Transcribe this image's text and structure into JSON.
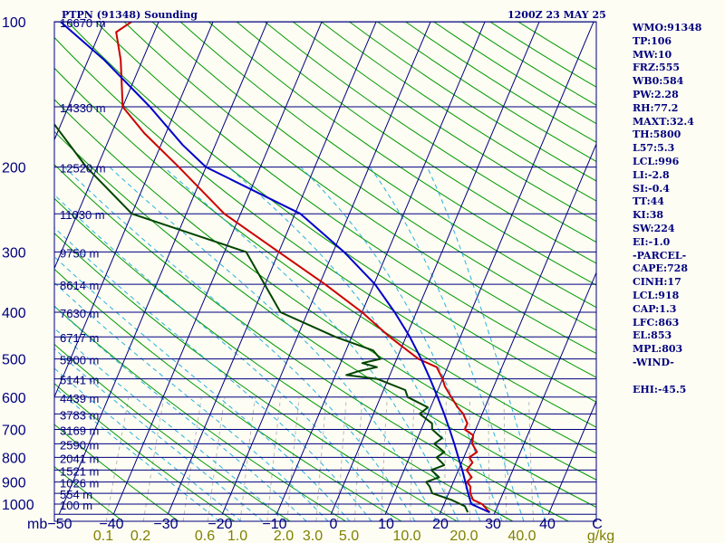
{
  "header": {
    "title": "PTPN (91348) Sounding",
    "time": "1200Z 23 MAY 25"
  },
  "stats": [
    "WMO:91348",
    "TP:106",
    "MW:10",
    "FRZ:555",
    "WB0:584",
    "PW:2.28",
    "RH:77.2",
    "MAXT:32.4",
    "TH:5800",
    "L57:5.3",
    "LCL:996",
    "LI:-2.8",
    "SI:-0.4",
    "TT:44",
    "KI:38",
    "SW:224",
    "EI:-1.0",
    "-PARCEL-",
    "CAPE:728",
    "CINH:17",
    "LCL:918",
    "CAP:1.3",
    "LFC:863",
    "EL:853",
    "MPL:803",
    "-WIND-",
    "",
    "EHI:-45.5"
  ],
  "colors": {
    "background": "#fdfdf3",
    "isobar": "#000080",
    "isotherm": "#000080",
    "dry_adiabat": "#009900",
    "mixing_ratio": "#bbbbbb",
    "moist_adiabat": "#2ab0e0",
    "temperature": "#cc0000",
    "dewpoint": "#004400",
    "parcel": "#0000cc",
    "axis_text": "#000080",
    "mixing_text": "#808000"
  },
  "chart_data": {
    "type": "line",
    "diagram": "skew-T log-P",
    "y_axis": {
      "label": "mb",
      "pressure_levels": [
        100,
        200,
        300,
        400,
        500,
        600,
        700,
        800,
        900,
        1000
      ],
      "height_labels": [
        {
          "p": 100,
          "label": "16670 m"
        },
        {
          "p": 150,
          "label": "14330 m"
        },
        {
          "p": 200,
          "label": "12520 m"
        },
        {
          "p": 250,
          "label": "11030 m"
        },
        {
          "p": 300,
          "label": "9750 m"
        },
        {
          "p": 350,
          "label": "8614 m"
        },
        {
          "p": 400,
          "label": "7630 m"
        },
        {
          "p": 450,
          "label": "6717 m"
        },
        {
          "p": 500,
          "label": "5900 m"
        },
        {
          "p": 550,
          "label": "5141 m"
        },
        {
          "p": 600,
          "label": "4439 m"
        },
        {
          "p": 650,
          "label": "3783 m"
        },
        {
          "p": 700,
          "label": "3169 m"
        },
        {
          "p": 750,
          "label": "2590 m"
        },
        {
          "p": 800,
          "label": "2041 m"
        },
        {
          "p": 850,
          "label": "1521 m"
        },
        {
          "p": 900,
          "label": "1026 m"
        },
        {
          "p": 950,
          "label": "554 m"
        },
        {
          "p": 1000,
          "label": "100 m"
        }
      ],
      "range_hpa": [
        1050,
        100
      ]
    },
    "x_axis": {
      "temperature_ticks": [
        "−50",
        "−40",
        "−30",
        "−20",
        "−10",
        "0",
        "10",
        "20",
        "30",
        "40",
        "C"
      ],
      "temperature_range_c": [
        -50,
        50
      ],
      "mixing_ratio_ticks": [
        "0.1",
        "0.2",
        "0.6",
        "1.0",
        "2.0",
        "3.0",
        "5.0",
        "10.0",
        "20.0",
        "40.0",
        "g/kg"
      ]
    },
    "series": [
      {
        "key": "temperature",
        "points": [
          [
            1040,
            29
          ],
          [
            1000,
            27
          ],
          [
            980,
            25
          ],
          [
            950,
            24
          ],
          [
            920,
            23.5
          ],
          [
            900,
            22.5
          ],
          [
            880,
            23
          ],
          [
            850,
            21.5
          ],
          [
            820,
            22
          ],
          [
            800,
            21
          ],
          [
            780,
            22
          ],
          [
            750,
            20.5
          ],
          [
            720,
            20
          ],
          [
            700,
            18
          ],
          [
            680,
            18
          ],
          [
            650,
            16.5
          ],
          [
            630,
            15
          ],
          [
            600,
            13
          ],
          [
            570,
            11
          ],
          [
            550,
            10
          ],
          [
            520,
            8
          ],
          [
            500,
            4
          ],
          [
            450,
            -3
          ],
          [
            400,
            -10
          ],
          [
            350,
            -19
          ],
          [
            300,
            -30
          ],
          [
            250,
            -43
          ],
          [
            200,
            -55
          ],
          [
            170,
            -64
          ],
          [
            150,
            -70
          ],
          [
            120,
            -74
          ],
          [
            105,
            -77
          ],
          [
            100,
            -75
          ]
        ]
      },
      {
        "key": "dewpoint",
        "points": [
          [
            1040,
            25
          ],
          [
            1010,
            24
          ],
          [
            1000,
            23
          ],
          [
            980,
            21
          ],
          [
            950,
            17
          ],
          [
            920,
            16
          ],
          [
            900,
            15
          ],
          [
            880,
            17
          ],
          [
            850,
            15
          ],
          [
            830,
            17
          ],
          [
            800,
            15
          ],
          [
            780,
            16
          ],
          [
            750,
            13.5
          ],
          [
            730,
            14.5
          ],
          [
            700,
            12
          ],
          [
            680,
            11.5
          ],
          [
            650,
            8.5
          ],
          [
            630,
            9.5
          ],
          [
            600,
            5
          ],
          [
            580,
            4
          ],
          [
            560,
            0
          ],
          [
            550,
            -2
          ],
          [
            540,
            -8
          ],
          [
            530,
            -6
          ],
          [
            520,
            -3
          ],
          [
            510,
            -6
          ],
          [
            500,
            -3
          ],
          [
            480,
            -5
          ],
          [
            450,
            -13
          ],
          [
            400,
            -25
          ],
          [
            300,
            -36
          ],
          [
            250,
            -60
          ],
          [
            200,
            -72
          ],
          [
            150,
            -85
          ],
          [
            120,
            -95
          ],
          [
            108,
            -100
          ],
          [
            100,
            -100
          ]
        ]
      },
      {
        "key": "parcel",
        "points": [
          [
            1040,
            29
          ],
          [
            1000,
            25
          ],
          [
            950,
            23.6
          ],
          [
            900,
            22.2
          ],
          [
            850,
            20.7
          ],
          [
            800,
            19
          ],
          [
            750,
            17.2
          ],
          [
            700,
            15.2
          ],
          [
            650,
            13
          ],
          [
            600,
            10.5
          ],
          [
            550,
            7.7
          ],
          [
            500,
            4.5
          ],
          [
            450,
            0.7
          ],
          [
            400,
            -4
          ],
          [
            350,
            -9.8
          ],
          [
            300,
            -18
          ],
          [
            250,
            -29
          ],
          [
            200,
            -50
          ],
          [
            180,
            -56
          ],
          [
            150,
            -65
          ],
          [
            120,
            -77
          ],
          [
            100,
            -88
          ]
        ]
      }
    ]
  }
}
